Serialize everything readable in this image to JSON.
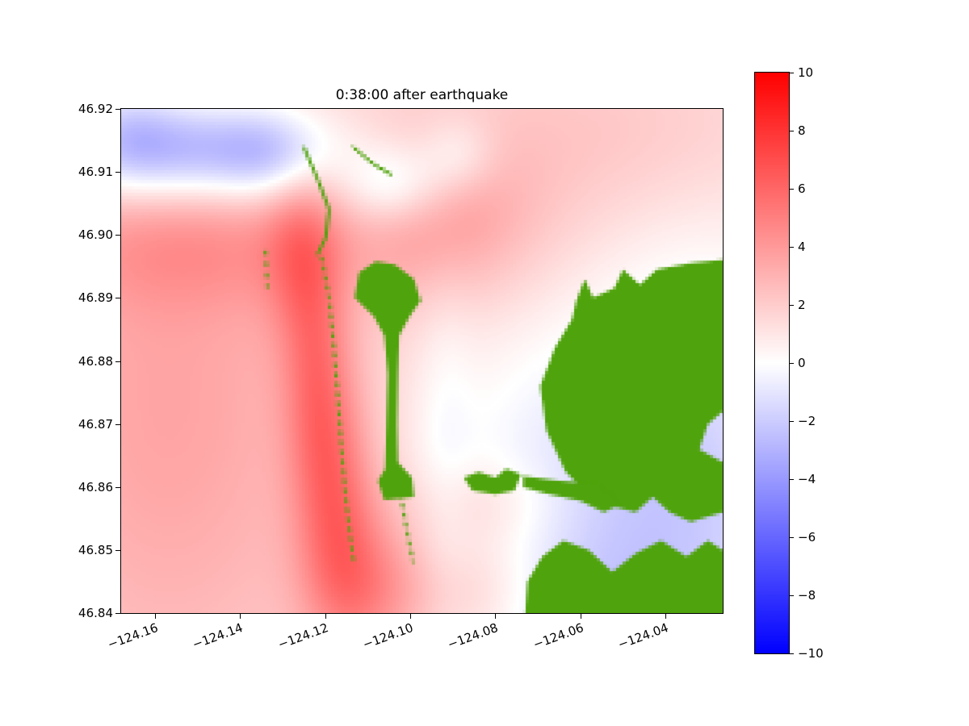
{
  "figure": {
    "background": "#ffffff"
  },
  "chart_data": {
    "type": "heatmap",
    "title": "0:38:00 after earthquake",
    "xlabel": "",
    "ylabel": "",
    "xlim": [
      -124.168,
      -124.0265
    ],
    "ylim": [
      46.84,
      46.92
    ],
    "grid": false,
    "x_ticks": [
      -124.16,
      -124.14,
      -124.12,
      -124.1,
      -124.08,
      -124.06,
      -124.04
    ],
    "x_tick_labels": [
      "−124.16",
      "−124.14",
      "−124.12",
      "−124.10",
      "−124.08",
      "−124.06",
      "−124.04"
    ],
    "y_ticks": [
      46.92,
      46.91,
      46.9,
      46.89,
      46.88,
      46.87,
      46.86,
      46.85,
      46.84
    ],
    "y_tick_labels": [
      "46.92",
      "46.91",
      "46.90",
      "46.89",
      "46.88",
      "46.87",
      "46.86",
      "46.85",
      "46.84"
    ],
    "colorbar": {
      "cmap": "bwr",
      "vmin": -10,
      "vmax": 10,
      "ticks": [
        10,
        8,
        6,
        4,
        2,
        0,
        -2,
        -4,
        -6,
        -8,
        -10
      ],
      "tick_labels": [
        "10",
        "8",
        "6",
        "4",
        "2",
        "0",
        "−2",
        "−4",
        "−6",
        "−8",
        "−10"
      ],
      "colors": [
        "#0000ff",
        "#ffffff",
        "#ff0000"
      ],
      "position": "right"
    },
    "land_color": "#4FA30C",
    "field_blobs": [
      {
        "x": -124.1,
        "y": 46.88,
        "sx": 0.25,
        "sy": 0.14,
        "a": 1.0
      },
      {
        "x": -124.157,
        "y": 46.873,
        "sx": 0.032,
        "sy": 0.04,
        "a": 2.6
      },
      {
        "x": -124.15,
        "y": 46.898,
        "sx": 0.028,
        "sy": 0.007,
        "a": 1.6
      },
      {
        "x": -124.126,
        "y": 46.897,
        "sx": 0.006,
        "sy": 0.01,
        "a": 2.2
      },
      {
        "x": -124.122,
        "y": 46.877,
        "sx": 0.0055,
        "sy": 0.014,
        "a": 2.8
      },
      {
        "x": -124.117,
        "y": 46.858,
        "sx": 0.0065,
        "sy": 0.013,
        "a": 3.0
      },
      {
        "x": -124.111,
        "y": 46.8445,
        "sx": 0.009,
        "sy": 0.009,
        "a": 2.6
      },
      {
        "x": -124.088,
        "y": 46.843,
        "sx": 0.016,
        "sy": 0.007,
        "a": 1.9
      },
      {
        "x": -124.082,
        "y": 46.8575,
        "sx": 0.013,
        "sy": 0.005,
        "a": 1.2
      },
      {
        "x": -124.058,
        "y": 46.916,
        "sx": 0.035,
        "sy": 0.012,
        "a": 1.3
      },
      {
        "x": -124.089,
        "y": 46.9,
        "sx": 0.018,
        "sy": 0.01,
        "a": 1.5
      },
      {
        "x": -124.095,
        "y": 46.905,
        "sx": 0.012,
        "sy": 0.008,
        "a": 1.2
      },
      {
        "x": -124.152,
        "y": 46.9135,
        "sx": 0.022,
        "sy": 0.0058,
        "a": -5.0
      },
      {
        "x": -124.166,
        "y": 46.917,
        "sx": 0.008,
        "sy": 0.006,
        "a": -1.6
      },
      {
        "x": -124.132,
        "y": 46.9125,
        "sx": 0.009,
        "sy": 0.005,
        "a": -1.8
      },
      {
        "x": -124.1035,
        "y": 46.9078,
        "sx": 0.0085,
        "sy": 0.0048,
        "a": -3.0
      },
      {
        "x": -124.0885,
        "y": 46.9125,
        "sx": 0.0065,
        "sy": 0.0045,
        "a": -1.8
      },
      {
        "x": -124.044,
        "y": 46.852,
        "sx": 0.028,
        "sy": 0.016,
        "a": -2.5
      },
      {
        "x": -124.032,
        "y": 46.878,
        "sx": 0.018,
        "sy": 0.018,
        "a": -1.5
      },
      {
        "x": -124.058,
        "y": 46.838,
        "sx": 0.022,
        "sy": 0.008,
        "a": -1.5
      },
      {
        "x": -124.072,
        "y": 46.872,
        "sx": 0.022,
        "sy": 0.02,
        "a": -0.7
      },
      {
        "x": -124.092,
        "y": 46.864,
        "sx": 0.005,
        "sy": 0.025,
        "a": -0.8
      }
    ],
    "land_polygons": [
      [
        [
          -124.113,
          46.89
        ],
        [
          -124.112,
          46.894
        ],
        [
          -124.108,
          46.8958
        ],
        [
          -124.1035,
          46.8952
        ],
        [
          -124.099,
          46.893
        ],
        [
          -124.0975,
          46.8895
        ],
        [
          -124.1,
          46.887
        ],
        [
          -124.1025,
          46.884
        ],
        [
          -124.1028,
          46.878
        ],
        [
          -124.103,
          46.87
        ],
        [
          -124.1028,
          46.864
        ],
        [
          -124.0995,
          46.8615
        ],
        [
          -124.099,
          46.8585
        ],
        [
          -124.106,
          46.858
        ],
        [
          -124.1075,
          46.861
        ],
        [
          -124.1058,
          46.863
        ],
        [
          -124.1055,
          46.87
        ],
        [
          -124.1052,
          46.878
        ],
        [
          -124.106,
          46.884
        ],
        [
          -124.1085,
          46.887
        ]
      ],
      [
        [
          -124.0265,
          46.896
        ],
        [
          -124.034,
          46.8955
        ],
        [
          -124.042,
          46.8945
        ],
        [
          -124.046,
          46.892
        ],
        [
          -124.05,
          46.8945
        ],
        [
          -124.052,
          46.8915
        ],
        [
          -124.057,
          46.89
        ],
        [
          -124.059,
          46.893
        ],
        [
          -124.061,
          46.8895
        ],
        [
          -124.062,
          46.8865
        ],
        [
          -124.066,
          46.882
        ],
        [
          -124.0695,
          46.876
        ],
        [
          -124.068,
          46.869
        ],
        [
          -124.0635,
          46.8625
        ],
        [
          -124.0585,
          46.859
        ],
        [
          -124.053,
          46.857
        ],
        [
          -124.047,
          46.856
        ],
        [
          -124.043,
          46.8585
        ],
        [
          -124.039,
          46.856
        ],
        [
          -124.034,
          46.8545
        ],
        [
          -124.0265,
          46.856
        ],
        [
          -124.0265,
          46.864
        ],
        [
          -124.032,
          46.866
        ],
        [
          -124.03,
          46.87
        ],
        [
          -124.0265,
          46.872
        ]
      ],
      [
        [
          -124.073,
          46.84
        ],
        [
          -124.0725,
          46.845
        ],
        [
          -124.069,
          46.849
        ],
        [
          -124.064,
          46.8515
        ],
        [
          -124.058,
          46.85
        ],
        [
          -124.0525,
          46.8465
        ],
        [
          -124.047,
          46.8495
        ],
        [
          -124.041,
          46.8515
        ],
        [
          -124.035,
          46.849
        ],
        [
          -124.03,
          46.8515
        ],
        [
          -124.0265,
          46.85
        ],
        [
          -124.0265,
          46.84
        ]
      ],
      [
        [
          -124.0855,
          46.8595
        ],
        [
          -124.0875,
          46.8615
        ],
        [
          -124.084,
          46.8625
        ],
        [
          -124.08,
          46.8615
        ],
        [
          -124.0775,
          46.863
        ],
        [
          -124.074,
          46.862
        ],
        [
          -124.0755,
          46.8595
        ],
        [
          -124.08,
          46.8588
        ]
      ],
      [
        [
          -124.0735,
          46.8618
        ],
        [
          -124.065,
          46.861
        ],
        [
          -124.056,
          46.8605
        ],
        [
          -124.05,
          46.8575
        ],
        [
          -124.0545,
          46.856
        ],
        [
          -124.06,
          46.8578
        ],
        [
          -124.068,
          46.859
        ],
        [
          -124.0735,
          46.86
        ]
      ]
    ],
    "land_lines": [
      {
        "dash": [
          1.5,
          1.5
        ],
        "points": [
          [
            -124.1208,
            46.8965
          ],
          [
            -124.119,
            46.89
          ],
          [
            -124.118,
            46.883
          ],
          [
            -124.117,
            46.875
          ],
          [
            -124.1162,
            46.867
          ],
          [
            -124.1152,
            46.859
          ],
          [
            -124.114,
            46.852
          ],
          [
            -124.1132,
            46.848
          ]
        ]
      },
      {
        "dash": [
          1.5,
          1.5
        ],
        "points": [
          [
            -124.1022,
            46.859
          ],
          [
            -124.1008,
            46.8535
          ],
          [
            -124.0992,
            46.848
          ]
        ]
      },
      {
        "dash": [
          1.5,
          2
        ],
        "points": [
          [
            -124.134,
            46.8975
          ],
          [
            -124.1335,
            46.8915
          ]
        ]
      },
      {
        "dash": [],
        "points": [
          [
            -124.125,
            46.914
          ],
          [
            -124.1215,
            46.9085
          ],
          [
            -124.119,
            46.904
          ],
          [
            -124.1198,
            46.8995
          ],
          [
            -124.1218,
            46.8968
          ]
        ]
      },
      {
        "dash": [],
        "points": [
          [
            -124.1135,
            46.914
          ],
          [
            -124.1085,
            46.9112
          ],
          [
            -124.1042,
            46.9095
          ]
        ]
      }
    ]
  }
}
